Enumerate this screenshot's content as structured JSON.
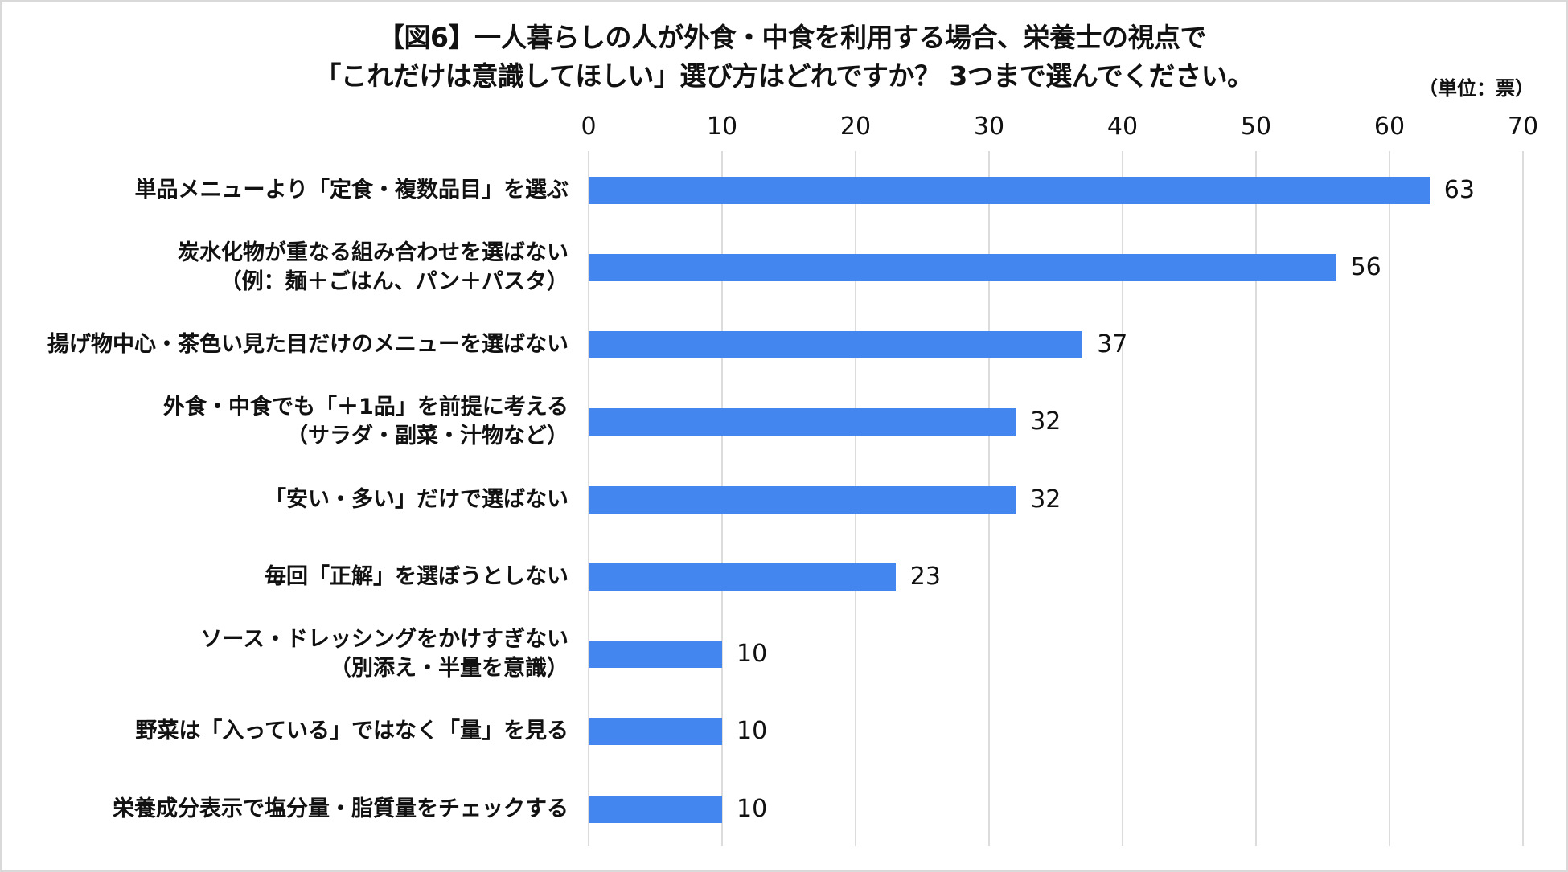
{
  "chart_data": {
    "type": "bar",
    "orientation": "horizontal",
    "title": "【図6】一人暮らしの人が外食・中食を利用する場合、栄養士の視点で「これだけは意識してほしい」選び方はどれですか？ 3つまで選んでください。",
    "title_lines": [
      "【図6】一人暮らしの人が外食・中食を利用する場合、栄養士の視点で",
      "「これだけは意識してほしい」選び方はどれですか？ 3つまで選んでください。"
    ],
    "unit_label": "（単位：票）",
    "xlabel": "",
    "ylabel": "",
    "xlim": [
      0,
      70
    ],
    "x_ticks": [
      "0",
      "10",
      "20",
      "30",
      "40",
      "50",
      "60",
      "70"
    ],
    "grid": true,
    "legend": null,
    "bar_color": "#4486EF",
    "categories": [
      [
        "単品メニューより「定食・複数品目」を選ぶ"
      ],
      [
        "炭水化物が重なる組み合わせを選ばない",
        "（例：麺＋ごはん、パン＋パスタ）"
      ],
      [
        "揚げ物中心・茶色い見た目だけのメニューを選ばない"
      ],
      [
        "外食・中食でも「＋1品」を前提に考える",
        "（サラダ・副菜・汁物など）"
      ],
      [
        "「安い・多い」だけで選ばない"
      ],
      [
        "毎回「正解」を選ぼうとしない"
      ],
      [
        "ソース・ドレッシングをかけすぎない",
        "（別添え・半量を意識）"
      ],
      [
        "野菜は「入っている」ではなく「量」を見る"
      ],
      [
        "栄養成分表示で塩分量・脂質量をチェックする"
      ]
    ],
    "values": [
      63,
      56,
      37,
      32,
      32,
      23,
      10,
      10,
      10
    ]
  }
}
